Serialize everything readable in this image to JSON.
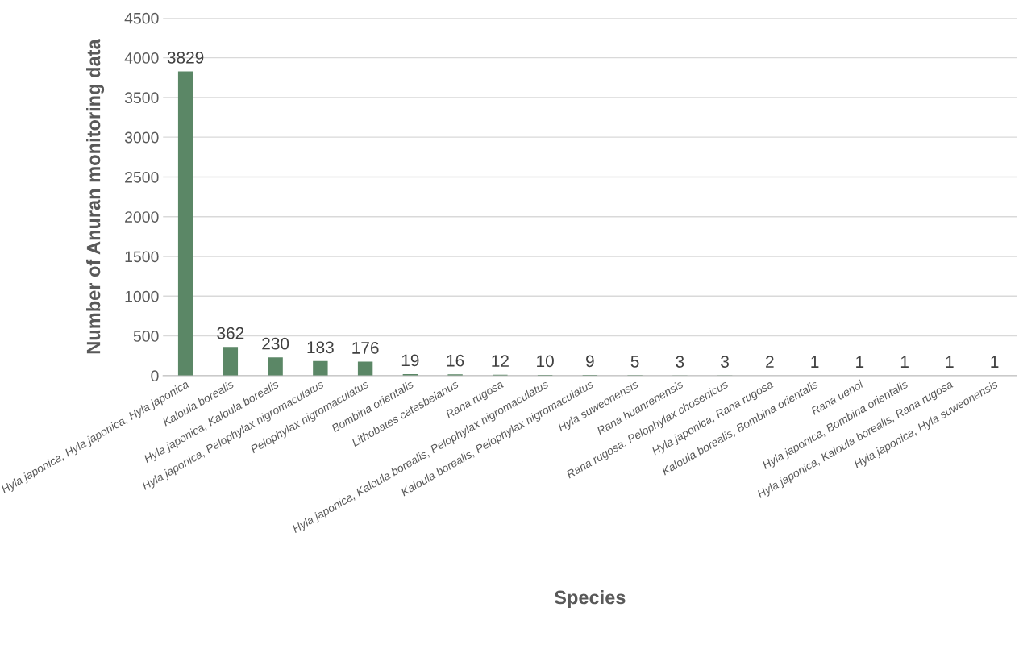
{
  "chart_data": {
    "type": "bar",
    "xlabel": "Species",
    "ylabel": "Number of Anuran monitoring data",
    "categories": [
      "Hyla japonica, Hyla japonica, Hyla japonica",
      "Kaloula borealis",
      "Hyla japonica, Kaloula borealis",
      "Hyla japonica, Pelophylax nigromaculatus",
      "Pelophylax nigromaculatus",
      "Bombina orientalis",
      "Lithobates catesbeianus",
      "Rana rugosa",
      "Hyla japonica, Kaloula borealis, Pelophylax nigromaculatus",
      "Kaloula borealis, Pelophylax nigromaculatus",
      "Hyla suweonensis",
      "Rana huanrenensis",
      "Rana rugosa, Pelophylax chosenicus",
      "Hyla japonica, Rana rugosa",
      "Kaloula borealis, Bombina orientalis",
      "Rana uenoi",
      "Hyla japonica, Bombina orientalis",
      "Hyla japonica, Kaloula borealis, Rana rugosa",
      "Hyla japonica, Hyla suweonensis"
    ],
    "values": [
      3829,
      362,
      230,
      183,
      176,
      19,
      16,
      12,
      10,
      9,
      5,
      3,
      3,
      2,
      1,
      1,
      1,
      1,
      1
    ],
    "color": "#5b8766",
    "ylim": [
      0,
      4500
    ],
    "yticks": [
      0,
      500,
      1000,
      1500,
      2000,
      2500,
      3000,
      3500,
      4000,
      4500
    ],
    "grid": "y",
    "data_labels": true,
    "legend": false
  }
}
